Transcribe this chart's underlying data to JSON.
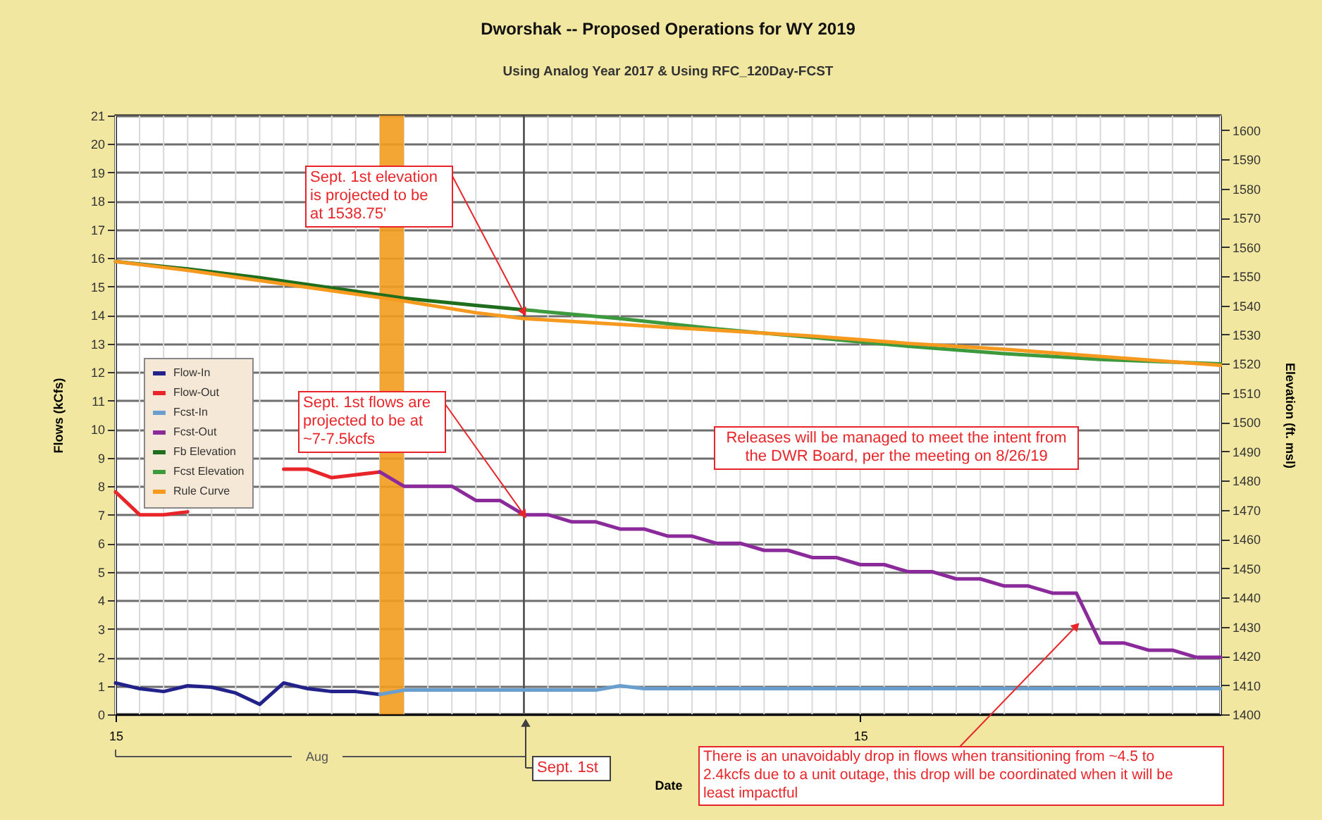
{
  "chart_data": {
    "type": "line",
    "title": "Dworshak -- Proposed Operations for WY 2019",
    "subtitle": "Using Analog Year 2017 & Using RFC_120Day-FCST",
    "xlabel": "Date",
    "ylabel": "Flows (kCfs)",
    "y2label": "Elevation (ft. msl)",
    "xlim": [
      "2019-08-15",
      "2019-09-30"
    ],
    "xticks": [
      {
        "value": "2019-08-15",
        "label": "15"
      },
      {
        "value": "2019-09-15",
        "label": "15"
      }
    ],
    "ylim": [
      0,
      21
    ],
    "yticks": [
      0,
      1,
      2,
      3,
      4,
      5,
      6,
      7,
      8,
      9,
      10,
      11,
      12,
      13,
      14,
      15,
      16,
      17,
      18,
      19,
      20,
      21
    ],
    "y2lim": [
      1400,
      1605
    ],
    "y2ticks": [
      1400,
      1410,
      1420,
      1430,
      1440,
      1450,
      1460,
      1470,
      1480,
      1490,
      1500,
      1510,
      1520,
      1530,
      1540,
      1550,
      1560,
      1570,
      1580,
      1590,
      1600
    ],
    "series": [
      {
        "name": "Flow-In",
        "color": "#22228a",
        "x": [
          "2019-08-15",
          "2019-08-16",
          "2019-08-17",
          "2019-08-18",
          "2019-08-19",
          "2019-08-20",
          "2019-08-21",
          "2019-08-22",
          "2019-08-23",
          "2019-08-24",
          "2019-08-25",
          "2019-08-26"
        ],
        "values": [
          1.1,
          0.9,
          0.8,
          1.0,
          0.95,
          0.75,
          0.35,
          1.1,
          0.9,
          0.8,
          0.8,
          0.7
        ]
      },
      {
        "name": "Flow-Out",
        "color": "#e8262a",
        "x": [
          "2019-08-15",
          "2019-08-16",
          "2019-08-17",
          "2019-08-18",
          "2019-08-19",
          "2019-08-20",
          "2019-08-21",
          "2019-08-22",
          "2019-08-23",
          "2019-08-24",
          "2019-08-25",
          "2019-08-26"
        ],
        "values": [
          7.8,
          7.0,
          7.0,
          7.1,
          null,
          null,
          null,
          8.6,
          8.6,
          8.3,
          8.4,
          8.5
        ]
      },
      {
        "name": "Fcst-In",
        "color": "#6a9ecf",
        "x": [
          "2019-08-26",
          "2019-08-27",
          "2019-09-01",
          "2019-09-04",
          "2019-09-05",
          "2019-09-06",
          "2019-09-12",
          "2019-09-18",
          "2019-09-24",
          "2019-09-30"
        ],
        "values": [
          0.7,
          0.85,
          0.85,
          0.85,
          1.0,
          0.9,
          0.9,
          0.9,
          0.9,
          0.9
        ]
      },
      {
        "name": "Fcst-Out",
        "color": "#8b2a9b",
        "x": [
          "2019-08-26",
          "2019-08-27",
          "2019-08-28",
          "2019-08-29",
          "2019-08-30",
          "2019-08-31",
          "2019-09-01",
          "2019-09-02",
          "2019-09-03",
          "2019-09-04",
          "2019-09-05",
          "2019-09-06",
          "2019-09-07",
          "2019-09-08",
          "2019-09-09",
          "2019-09-10",
          "2019-09-11",
          "2019-09-12",
          "2019-09-13",
          "2019-09-14",
          "2019-09-15",
          "2019-09-16",
          "2019-09-17",
          "2019-09-18",
          "2019-09-19",
          "2019-09-20",
          "2019-09-21",
          "2019-09-22",
          "2019-09-23",
          "2019-09-24",
          "2019-09-25",
          "2019-09-26",
          "2019-09-27",
          "2019-09-28",
          "2019-09-29",
          "2019-09-30"
        ],
        "values": [
          8.5,
          8.0,
          8.0,
          8.0,
          7.5,
          7.5,
          7.0,
          7.0,
          6.75,
          6.75,
          6.5,
          6.5,
          6.25,
          6.25,
          6.0,
          6.0,
          5.75,
          5.75,
          5.5,
          5.5,
          5.25,
          5.25,
          5.0,
          5.0,
          4.75,
          4.75,
          4.5,
          4.5,
          4.25,
          4.25,
          2.5,
          2.5,
          2.25,
          2.25,
          2.0,
          2.0
        ]
      },
      {
        "name": "Fb Elevation",
        "color": "#1e6e1e",
        "axis": "y2",
        "x": [
          "2019-08-15",
          "2019-08-18",
          "2019-08-21",
          "2019-08-24",
          "2019-08-27",
          "2019-08-30",
          "2019-09-01"
        ],
        "values": [
          1555,
          1552.5,
          1549.5,
          1546,
          1542.5,
          1540,
          1538.5
        ]
      },
      {
        "name": "Fcst Elevation",
        "color": "#3c9a3c",
        "axis": "y2",
        "x": [
          "2019-09-01",
          "2019-09-05",
          "2019-09-09",
          "2019-09-13",
          "2019-09-17",
          "2019-09-21",
          "2019-09-25",
          "2019-09-30"
        ],
        "values": [
          1538.5,
          1535.5,
          1532,
          1529,
          1526,
          1523.5,
          1521.5,
          1520
        ]
      },
      {
        "name": "Rule Curve",
        "color": "#f59a1f",
        "axis": "y2",
        "x": [
          "2019-08-15",
          "2019-08-18",
          "2019-08-21",
          "2019-08-24",
          "2019-08-27",
          "2019-08-30",
          "2019-09-01",
          "2019-09-05",
          "2019-09-09",
          "2019-09-13",
          "2019-09-17",
          "2019-09-21",
          "2019-09-25",
          "2019-09-30"
        ],
        "values": [
          1555,
          1552,
          1548.5,
          1545,
          1541.5,
          1537.5,
          1535.5,
          1533.5,
          1531.5,
          1529.5,
          1527,
          1525,
          1522.5,
          1519.5
        ]
      }
    ],
    "ref_lines": [
      {
        "axis": "x",
        "value": "2019-09-01",
        "label": "Sept. 1st",
        "color": "#404040"
      }
    ],
    "bands": [
      {
        "axis": "x",
        "from": "2019-08-26",
        "to": "2019-08-27",
        "color": "#f39c1f"
      }
    ],
    "annotations": [
      {
        "text": "Sept. 1st elevation is projected to be at 1538.75'",
        "x": "2019-09-01",
        "y": 14.1
      },
      {
        "text": "Sept. 1st flows are projected to be at ~7-7.5kcfs",
        "x": "2019-09-01",
        "y": 7.0
      },
      "Releases will be managed to meet the intent from the DWR Board, per the meeting on 8/26/19",
      {
        "text": "There is an unavoidably drop in flows when transitioning from ~4.5 to 2.4kcfs due to a unit outage, this drop will be coordinated when it will be least impactful",
        "x": "2019-09-24",
        "y": 3.1
      },
      "Aug"
    ],
    "grid": true,
    "legend": "left",
    "marker": "none"
  }
}
